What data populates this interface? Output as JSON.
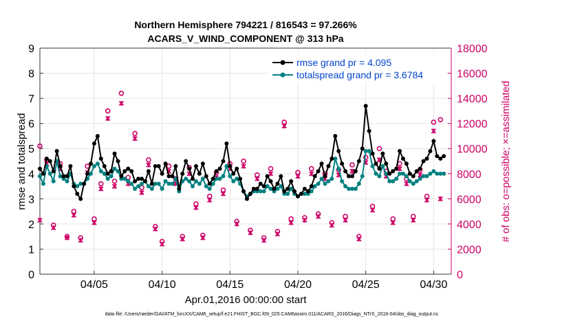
{
  "chart_data": {
    "type": "line",
    "title_line1": "Northern Hemisphere 794221 / 816543 = 97.266%",
    "title_line2": "ACARS_V_WIND_COMPONENT @ 313 hPa",
    "xlabel": "Apr.01,2016 00:00:00 start",
    "ylabel_left": "rmse and totalspread",
    "ylabel_right": "# of obs: o=possible; ×=assimilated",
    "footer": "data file: /Users/raeder/DAI/ATM_forcXX/CAM6_setup/f.e21.FHIST_BGC.f09_025.CAM6assim.011/ACARS_2016/Diags_NTrS_2016-04/obs_diag_output.nc",
    "xlim": [
      1,
      31
    ],
    "ylim_left": [
      0,
      9
    ],
    "ylim_right": [
      0,
      18000
    ],
    "x_ticks": [
      5,
      10,
      15,
      20,
      25,
      30
    ],
    "x_tick_labels": [
      "04/05",
      "04/10",
      "04/15",
      "04/20",
      "04/25",
      "04/30"
    ],
    "y_left_ticks": [
      "0",
      "1",
      "2",
      "3",
      "4",
      "5",
      "6",
      "7",
      "8",
      "9"
    ],
    "y_right_ticks": [
      "0",
      "2000",
      "4000",
      "6000",
      "8000",
      "10000",
      "12000",
      "14000",
      "16000",
      "18000"
    ],
    "grid": true,
    "legend_position": "top-right",
    "colors": {
      "rmse": "#000000",
      "spread": "#008080",
      "obs": "#cc0066",
      "legend_text": "#0044cc"
    },
    "series": [
      {
        "name": "rmse grand pr = 4.095",
        "color": "#000000",
        "x": [
          1.0,
          1.25,
          1.5,
          1.75,
          2.0,
          2.25,
          2.5,
          2.75,
          3.0,
          3.25,
          3.5,
          3.75,
          4.0,
          4.25,
          4.5,
          4.75,
          5.0,
          5.25,
          5.5,
          5.75,
          6.0,
          6.25,
          6.5,
          6.75,
          7.0,
          7.25,
          7.5,
          7.75,
          8.0,
          8.25,
          8.5,
          8.75,
          9.0,
          9.25,
          9.5,
          9.75,
          10.0,
          10.25,
          10.5,
          10.75,
          11.0,
          11.25,
          11.5,
          11.75,
          12.0,
          12.25,
          12.5,
          12.75,
          13.0,
          13.25,
          13.5,
          13.75,
          14.0,
          14.25,
          14.5,
          14.75,
          15.0,
          15.25,
          15.5,
          15.75,
          16.0,
          16.25,
          16.5,
          16.75,
          17.0,
          17.25,
          17.5,
          17.75,
          18.0,
          18.25,
          18.5,
          18.75,
          19.0,
          19.25,
          19.5,
          19.75,
          20.0,
          20.25,
          20.5,
          20.75,
          21.0,
          21.25,
          21.5,
          21.75,
          22.0,
          22.25,
          22.5,
          22.75,
          23.0,
          23.25,
          23.5,
          23.75,
          24.0,
          24.25,
          24.5,
          24.75,
          25.0,
          25.25,
          25.5,
          25.75,
          26.0,
          26.25,
          26.5,
          26.75,
          27.0,
          27.25,
          27.5,
          27.75,
          28.0,
          28.25,
          28.5,
          28.75,
          29.0,
          29.25,
          29.5,
          29.75,
          30.0,
          30.25,
          30.5,
          30.75
        ],
        "values": [
          4.2,
          4.0,
          4.6,
          4.5,
          4.1,
          4.9,
          4.3,
          3.9,
          3.9,
          4.3,
          3.5,
          3.2,
          3.0,
          3.6,
          4.0,
          4.4,
          5.2,
          5.5,
          4.6,
          4.3,
          4.0,
          4.1,
          4.8,
          4.5,
          3.9,
          4.1,
          4.2,
          4.1,
          3.7,
          3.8,
          3.8,
          3.7,
          4.1,
          3.6,
          4.3,
          4.3,
          4.0,
          4.4,
          3.9,
          3.9,
          4.3,
          3.4,
          4.0,
          4.5,
          4.2,
          3.8,
          4.3,
          4.0,
          4.4,
          3.9,
          3.6,
          3.8,
          4.1,
          4.2,
          4.5,
          5.2,
          4.3,
          4.0,
          4.2,
          3.8,
          3.3,
          3.0,
          3.2,
          3.4,
          3.4,
          3.6,
          3.5,
          3.9,
          3.7,
          3.4,
          3.6,
          3.9,
          3.3,
          3.4,
          3.7,
          3.3,
          3.1,
          3.2,
          3.4,
          3.3,
          3.5,
          3.9,
          4.1,
          4.4,
          3.9,
          4.3,
          4.6,
          5.5,
          4.9,
          4.4,
          4.1,
          3.9,
          3.9,
          4.1,
          4.5,
          5.0,
          6.7,
          5.7,
          4.8,
          4.4,
          4.2,
          4.8,
          4.4,
          4.0,
          4.1,
          4.2,
          4.9,
          4.6,
          4.4,
          4.0,
          3.9,
          4.1,
          4.2,
          4.5,
          4.6,
          4.9,
          5.3,
          4.7,
          4.6,
          4.7
        ]
      },
      {
        "name": "totalspread grand pr = 3.6784",
        "color": "#008080",
        "x": [
          1.0,
          1.25,
          1.5,
          1.75,
          2.0,
          2.25,
          2.5,
          2.75,
          3.0,
          3.25,
          3.5,
          3.75,
          4.0,
          4.25,
          4.5,
          4.75,
          5.0,
          5.25,
          5.5,
          5.75,
          6.0,
          6.25,
          6.5,
          6.75,
          7.0,
          7.25,
          7.5,
          7.75,
          8.0,
          8.25,
          8.5,
          8.75,
          9.0,
          9.25,
          9.5,
          9.75,
          10.0,
          10.25,
          10.5,
          10.75,
          11.0,
          11.25,
          11.5,
          11.75,
          12.0,
          12.25,
          12.5,
          12.75,
          13.0,
          13.25,
          13.5,
          13.75,
          14.0,
          14.25,
          14.5,
          14.75,
          15.0,
          15.25,
          15.5,
          15.75,
          16.0,
          16.25,
          16.5,
          16.75,
          17.0,
          17.25,
          17.5,
          17.75,
          18.0,
          18.25,
          18.5,
          18.75,
          19.0,
          19.25,
          19.5,
          19.75,
          20.0,
          20.25,
          20.5,
          20.75,
          21.0,
          21.25,
          21.5,
          21.75,
          22.0,
          22.25,
          22.5,
          22.75,
          23.0,
          23.25,
          23.5,
          23.75,
          24.0,
          24.25,
          24.5,
          24.75,
          25.0,
          25.25,
          25.5,
          25.75,
          26.0,
          26.25,
          26.5,
          26.75,
          27.0,
          27.25,
          27.5,
          27.75,
          28.0,
          28.25,
          28.5,
          28.75,
          29.0,
          29.25,
          29.5,
          29.75,
          30.0,
          30.25,
          30.5,
          30.75
        ],
        "values": [
          3.9,
          3.6,
          4.3,
          4.0,
          3.7,
          4.5,
          3.9,
          3.8,
          3.7,
          4.0,
          3.6,
          3.5,
          3.6,
          3.6,
          3.8,
          4.0,
          4.3,
          4.4,
          4.1,
          4.0,
          3.8,
          3.9,
          4.2,
          4.1,
          3.8,
          3.8,
          3.7,
          3.6,
          3.4,
          3.5,
          3.6,
          3.7,
          3.5,
          3.4,
          3.6,
          3.6,
          3.4,
          3.7,
          3.6,
          3.6,
          3.8,
          3.3,
          3.7,
          3.8,
          3.7,
          3.5,
          3.7,
          3.6,
          3.8,
          3.5,
          3.4,
          3.6,
          3.8,
          3.8,
          3.9,
          4.3,
          3.9,
          3.7,
          3.8,
          3.6,
          3.3,
          3.1,
          3.2,
          3.3,
          3.3,
          3.3,
          3.3,
          3.5,
          3.4,
          3.3,
          3.4,
          3.5,
          3.2,
          3.2,
          3.4,
          3.2,
          3.1,
          3.2,
          3.2,
          3.2,
          3.3,
          3.5,
          3.6,
          3.8,
          3.6,
          3.7,
          3.8,
          4.6,
          4.2,
          3.7,
          3.5,
          3.4,
          3.4,
          3.4,
          3.6,
          3.9,
          4.9,
          4.9,
          4.3,
          4.0,
          3.9,
          4.3,
          4.0,
          3.7,
          3.7,
          3.8,
          4.0,
          4.0,
          3.9,
          3.7,
          3.6,
          3.7,
          3.8,
          3.9,
          3.9,
          4.0,
          4.1,
          4.0,
          4.0,
          4.0
        ]
      }
    ],
    "obs_assimilated": {
      "x": [
        1.0,
        1.5,
        2.0,
        2.5,
        3.0,
        3.5,
        4.0,
        4.5,
        5.0,
        5.5,
        6.0,
        6.5,
        7.0,
        7.5,
        8.0,
        8.5,
        9.0,
        9.5,
        10.0,
        10.5,
        11.0,
        11.5,
        12.0,
        12.5,
        13.0,
        13.5,
        14.0,
        14.5,
        15.0,
        15.5,
        16.0,
        16.5,
        17.0,
        17.5,
        18.0,
        18.5,
        19.0,
        19.5,
        20.0,
        20.5,
        21.0,
        21.5,
        22.0,
        22.5,
        23.0,
        23.5,
        24.0,
        24.5,
        25.0,
        25.5,
        26.0,
        26.5,
        27.0,
        27.5,
        28.0,
        28.5,
        29.0,
        29.5,
        30.0,
        30.5
      ],
      "values": [
        4300,
        8800,
        3700,
        8400,
        2900,
        4700,
        2700,
        8100,
        4100,
        6800,
        12400,
        7000,
        13600,
        7200,
        10800,
        6500,
        8700,
        3600,
        2400,
        8200,
        7200,
        2800,
        8000,
        5300,
        2900,
        5900,
        7700,
        6400,
        8400,
        4000,
        8600,
        3300,
        7600,
        2700,
        8000,
        3200,
        11800,
        4100,
        7800,
        4300,
        8000,
        4600,
        7600,
        3900,
        7900,
        4300,
        8200,
        2800,
        8900,
        5100,
        9100,
        7800,
        4100,
        8400,
        7200,
        4300,
        7900,
        5900,
        11400,
        6000
      ]
    },
    "obs_possible": {
      "x": [
        1.0,
        1.5,
        2.0,
        2.5,
        3.0,
        3.5,
        4.0,
        4.5,
        5.0,
        5.5,
        6.0,
        6.5,
        7.0,
        7.5,
        8.0,
        8.5,
        9.0,
        9.5,
        10.0,
        10.5,
        11.0,
        11.5,
        12.0,
        12.5,
        13.0,
        13.5,
        14.0,
        14.5,
        15.0,
        15.5,
        16.0,
        16.5,
        17.0,
        17.5,
        18.0,
        18.5,
        19.0,
        19.5,
        20.0,
        20.5,
        21.0,
        21.5,
        22.0,
        22.5,
        23.0,
        23.5,
        24.0,
        24.5,
        25.0,
        25.5,
        26.0,
        26.5,
        27.0,
        27.5,
        28.0,
        28.5,
        29.0,
        29.5,
        30.0,
        30.5
      ],
      "values": [
        10200,
        9100,
        3900,
        8800,
        3000,
        5000,
        2900,
        8600,
        4400,
        7200,
        13000,
        7400,
        14400,
        7700,
        11200,
        6900,
        9100,
        3800,
        2600,
        8600,
        7600,
        3000,
        8500,
        5600,
        3100,
        6200,
        8100,
        6700,
        8800,
        4200,
        9000,
        3500,
        7900,
        2900,
        8400,
        3400,
        12100,
        4400,
        8100,
        4500,
        8400,
        4800,
        8000,
        4100,
        8300,
        4600,
        8700,
        3000,
        9300,
        5400,
        10000,
        8200,
        4400,
        8800,
        7600,
        4600,
        8300,
        6200,
        12100,
        12300
      ]
    }
  }
}
